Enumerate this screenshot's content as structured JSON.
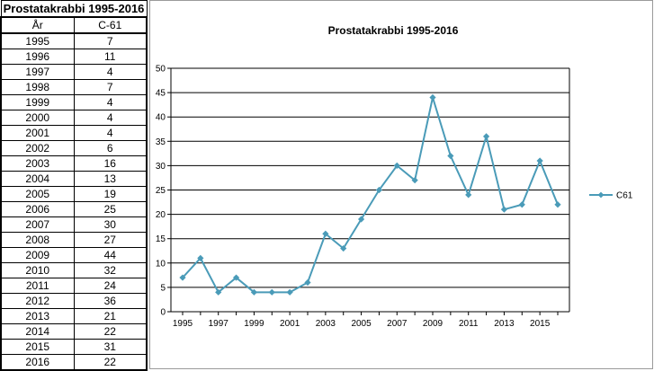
{
  "table": {
    "title": "Prostatakrabbi 1995-2016",
    "col_year": "År",
    "col_code": "C-61",
    "rows": [
      {
        "year": "1995",
        "value": "7"
      },
      {
        "year": "1996",
        "value": "11"
      },
      {
        "year": "1997",
        "value": "4"
      },
      {
        "year": "1998",
        "value": "7"
      },
      {
        "year": "1999",
        "value": "4"
      },
      {
        "year": "2000",
        "value": "4"
      },
      {
        "year": "2001",
        "value": "4"
      },
      {
        "year": "2002",
        "value": "6"
      },
      {
        "year": "2003",
        "value": "16"
      },
      {
        "year": "2004",
        "value": "13"
      },
      {
        "year": "2005",
        "value": "19"
      },
      {
        "year": "2006",
        "value": "25"
      },
      {
        "year": "2007",
        "value": "30"
      },
      {
        "year": "2008",
        "value": "27"
      },
      {
        "year": "2009",
        "value": "44"
      },
      {
        "year": "2010",
        "value": "32"
      },
      {
        "year": "2011",
        "value": "24"
      },
      {
        "year": "2012",
        "value": "36"
      },
      {
        "year": "2013",
        "value": "21"
      },
      {
        "year": "2014",
        "value": "22"
      },
      {
        "year": "2015",
        "value": "31"
      },
      {
        "year": "2016",
        "value": "22"
      }
    ]
  },
  "chart_data": {
    "type": "line",
    "title": "Prostatakrabbi 1995-2016",
    "xlabel": "",
    "ylabel": "",
    "x": [
      1995,
      1996,
      1997,
      1998,
      1999,
      2000,
      2001,
      2002,
      2003,
      2004,
      2005,
      2006,
      2007,
      2008,
      2009,
      2010,
      2011,
      2012,
      2013,
      2014,
      2015,
      2016
    ],
    "x_tick_labels": [
      "1995",
      "1997",
      "1999",
      "2001",
      "2003",
      "2005",
      "2007",
      "2009",
      "2011",
      "2013",
      "2015"
    ],
    "y_ticks": [
      0,
      5,
      10,
      15,
      20,
      25,
      30,
      35,
      40,
      45,
      50
    ],
    "ylim": [
      0,
      50
    ],
    "grid": "horizontal",
    "legend_position": "right",
    "series": [
      {
        "name": "C61",
        "color": "#4a9bb8",
        "marker": "diamond",
        "values": [
          7,
          11,
          4,
          7,
          4,
          4,
          4,
          6,
          16,
          13,
          19,
          25,
          30,
          27,
          44,
          32,
          24,
          36,
          21,
          22,
          31,
          22
        ]
      }
    ]
  }
}
